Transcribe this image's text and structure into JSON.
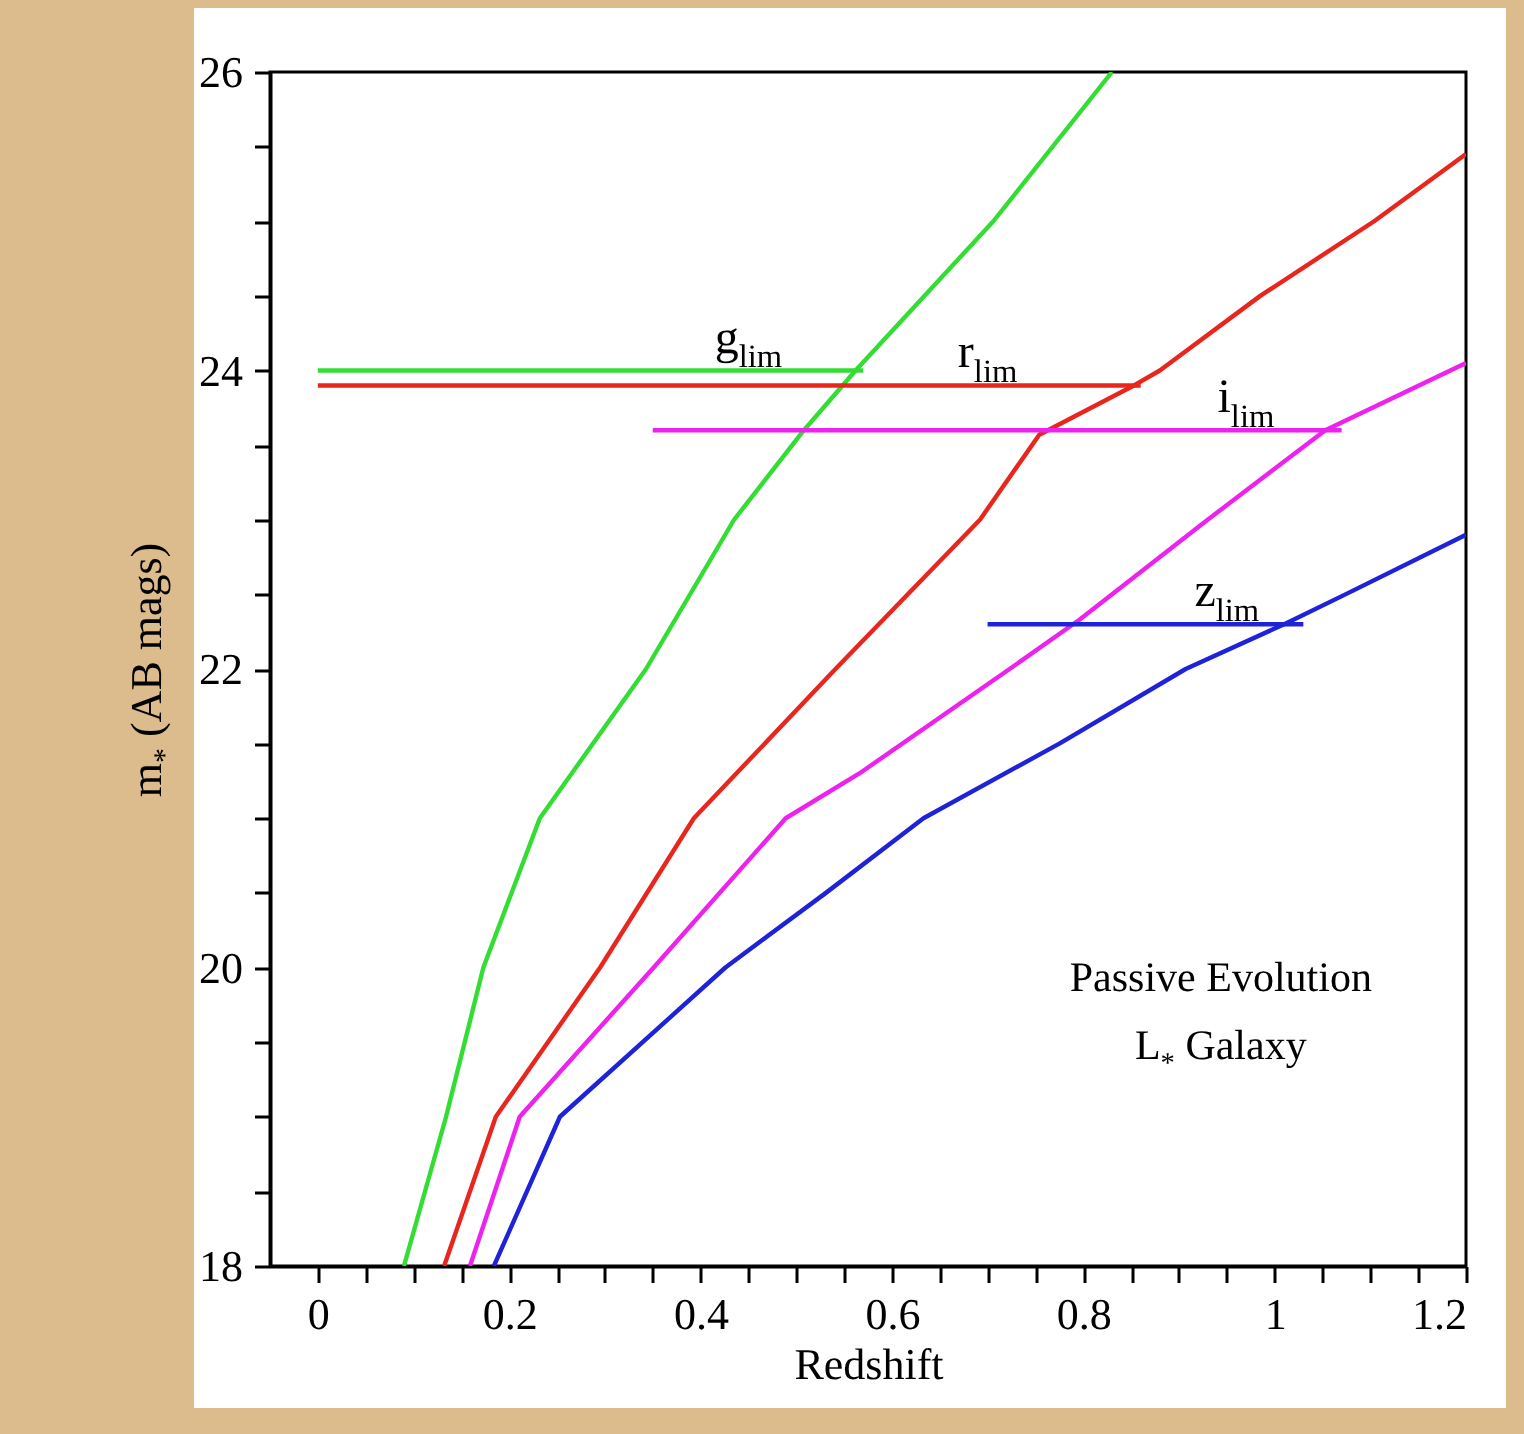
{
  "chart_data": {
    "type": "line",
    "xlabel": "Redshift",
    "ylabel": "m$_{*}$ (AB mags)",
    "xlim": [
      -0.05,
      1.2
    ],
    "ylim": [
      18,
      26
    ],
    "xticks": [
      0,
      {
        "value": 0.05,
        "label": null
      },
      {
        "value": 0.1,
        "label": null
      },
      {
        "value": 0.15,
        "label": null
      },
      0.2,
      {
        "value": 0.25,
        "label": null
      },
      {
        "value": 0.3,
        "label": null
      },
      {
        "value": 0.35,
        "label": null
      },
      0.4,
      {
        "value": 0.45,
        "label": null
      },
      {
        "value": 0.5,
        "label": null
      },
      {
        "value": 0.55,
        "label": null
      },
      0.6,
      {
        "value": 0.65,
        "label": null
      },
      {
        "value": 0.7,
        "label": null
      },
      {
        "value": 0.75,
        "label": null
      },
      0.8,
      {
        "value": 0.85,
        "label": null
      },
      {
        "value": 0.9,
        "label": null
      },
      {
        "value": 0.95,
        "label": null
      },
      1,
      {
        "value": 1.05,
        "label": null
      },
      {
        "value": 1.1,
        "label": null
      },
      {
        "value": 1.15,
        "label": null
      },
      1.2
    ],
    "yticks": [
      18,
      {
        "value": 18.5,
        "label": null
      },
      {
        "value": 19,
        "label": null
      },
      {
        "value": 19.5,
        "label": null
      },
      20,
      {
        "value": 20.5,
        "label": null
      },
      {
        "value": 21,
        "label": null
      },
      {
        "value": 21.5,
        "label": null
      },
      22,
      {
        "value": 22.5,
        "label": null
      },
      {
        "value": 23,
        "label": null
      },
      {
        "value": 23.5,
        "label": null
      },
      24,
      {
        "value": 24.5,
        "label": null
      },
      {
        "value": 25,
        "label": null
      },
      {
        "value": 25.5,
        "label": null
      },
      26
    ],
    "grid": false,
    "series": [
      {
        "color": "#33dd33",
        "x": [
          0.09,
          0.134,
          0.173,
          0.232,
          0.343,
          0.435,
          0.508,
          0.562,
          0.706,
          0.83
        ],
        "values": [
          18,
          19,
          20,
          21,
          22,
          23,
          23.6,
          24,
          25,
          26
        ]
      },
      {
        "color": "#e8261e",
        "x": [
          0.132,
          0.186,
          0.295,
          0.393,
          0.541,
          0.692,
          0.754,
          0.853,
          0.88,
          0.985,
          1.104,
          1.2
        ],
        "values": [
          18,
          19,
          20,
          21,
          22,
          23,
          23.57,
          23.9,
          24,
          24.5,
          25,
          25.45
        ]
      },
      {
        "color": "#ee22ee",
        "x": [
          0.159,
          0.211,
          0.351,
          0.489,
          0.566,
          0.723,
          0.796,
          0.93,
          1.053,
          1.2
        ],
        "values": [
          18,
          19,
          20,
          21,
          21.3,
          22,
          22.33,
          23,
          23.6,
          24.05
        ]
      },
      {
        "color": "#1e22d8",
        "x": [
          0.184,
          0.253,
          0.426,
          0.531,
          0.633,
          0.775,
          0.907,
          1.01,
          1.074,
          1.2
        ],
        "values": [
          18,
          19,
          20,
          20.5,
          21,
          21.5,
          22,
          22.3,
          22.5,
          22.9
        ]
      },
      {
        "color": "#33dd33",
        "x": [
          0,
          0.57
        ],
        "values": [
          24,
          24
        ]
      },
      {
        "color": "#e8261e",
        "x": [
          0,
          0.86
        ],
        "values": [
          23.9,
          23.9
        ]
      },
      {
        "color": "#ee22ee",
        "x": [
          0.35,
          1.07
        ],
        "values": [
          23.6,
          23.6
        ]
      },
      {
        "color": "#1e22d8",
        "x": [
          0.7,
          1.03
        ],
        "values": [
          22.3,
          22.3
        ]
      }
    ],
    "annotations": [
      {
        "text": "g$_{lim}$",
        "x": 0.45,
        "y": 24
      },
      {
        "text": "r$_{lim}$",
        "x": 0.7,
        "y": 23.9
      },
      {
        "text": "i$_{lim}$",
        "x": 0.97,
        "y": 23.6
      },
      {
        "text": "z$_{lim}$",
        "x": 0.95,
        "y": 22.3
      },
      "Passive Evolution",
      "L$_{*}$ Galaxy"
    ]
  }
}
